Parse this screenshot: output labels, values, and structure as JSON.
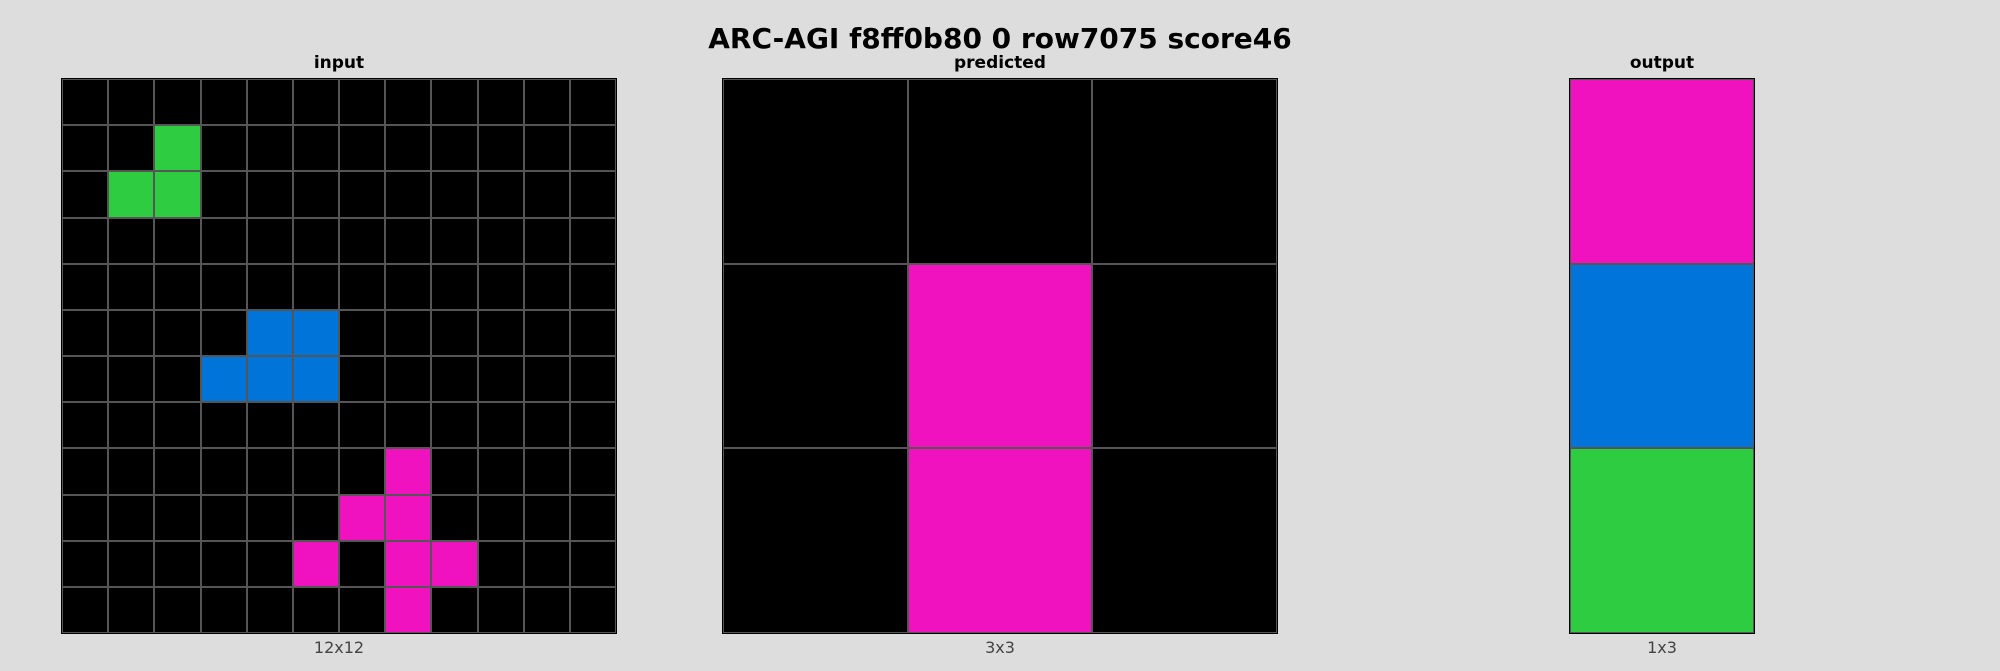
{
  "title": "ARC-AGI f8ff0b80 0 row7075 score46",
  "palette": {
    "0": "#000000",
    "1": "#0074d9",
    "3": "#2ecc40",
    "6": "#f012be"
  },
  "panels": {
    "input": {
      "label": "input",
      "size_label": "12x12",
      "grid": [
        [
          0,
          0,
          0,
          0,
          0,
          0,
          0,
          0,
          0,
          0,
          0,
          0
        ],
        [
          0,
          0,
          3,
          0,
          0,
          0,
          0,
          0,
          0,
          0,
          0,
          0
        ],
        [
          0,
          3,
          3,
          0,
          0,
          0,
          0,
          0,
          0,
          0,
          0,
          0
        ],
        [
          0,
          0,
          0,
          0,
          0,
          0,
          0,
          0,
          0,
          0,
          0,
          0
        ],
        [
          0,
          0,
          0,
          0,
          0,
          0,
          0,
          0,
          0,
          0,
          0,
          0
        ],
        [
          0,
          0,
          0,
          0,
          1,
          1,
          0,
          0,
          0,
          0,
          0,
          0
        ],
        [
          0,
          0,
          0,
          1,
          1,
          1,
          0,
          0,
          0,
          0,
          0,
          0
        ],
        [
          0,
          0,
          0,
          0,
          0,
          0,
          0,
          0,
          0,
          0,
          0,
          0
        ],
        [
          0,
          0,
          0,
          0,
          0,
          0,
          0,
          6,
          0,
          0,
          0,
          0
        ],
        [
          0,
          0,
          0,
          0,
          0,
          0,
          6,
          6,
          0,
          0,
          0,
          0
        ],
        [
          0,
          0,
          0,
          0,
          0,
          6,
          0,
          6,
          6,
          0,
          0,
          0
        ],
        [
          0,
          0,
          0,
          0,
          0,
          0,
          0,
          6,
          0,
          0,
          0,
          0
        ]
      ]
    },
    "predicted": {
      "label": "predicted",
      "size_label": "3x3",
      "grid": [
        [
          0,
          0,
          0
        ],
        [
          0,
          6,
          0
        ],
        [
          0,
          6,
          0
        ]
      ]
    },
    "output": {
      "label": "output",
      "size_label": "1x3",
      "grid": [
        [
          6
        ],
        [
          1
        ],
        [
          3
        ]
      ]
    }
  }
}
